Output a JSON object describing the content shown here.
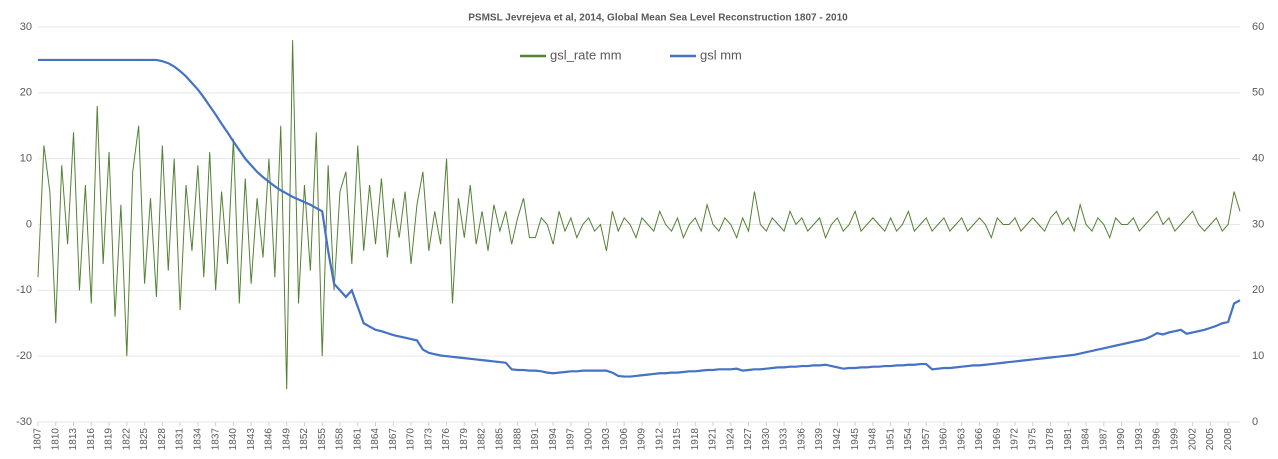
{
  "chart_data": {
    "type": "line",
    "title": "PSMSL Jevrejeva et al, 2014, Global Mean Sea Level Reconstruction 1807 - 2010",
    "x": [
      1807,
      1808,
      1809,
      1810,
      1811,
      1812,
      1813,
      1814,
      1815,
      1816,
      1817,
      1818,
      1819,
      1820,
      1821,
      1822,
      1823,
      1824,
      1825,
      1826,
      1827,
      1828,
      1829,
      1830,
      1831,
      1832,
      1833,
      1834,
      1835,
      1836,
      1837,
      1838,
      1839,
      1840,
      1841,
      1842,
      1843,
      1844,
      1845,
      1846,
      1847,
      1848,
      1849,
      1850,
      1851,
      1852,
      1853,
      1854,
      1855,
      1856,
      1857,
      1858,
      1859,
      1860,
      1861,
      1862,
      1863,
      1864,
      1865,
      1866,
      1867,
      1868,
      1869,
      1870,
      1871,
      1872,
      1873,
      1874,
      1875,
      1876,
      1877,
      1878,
      1879,
      1880,
      1881,
      1882,
      1883,
      1884,
      1885,
      1886,
      1887,
      1888,
      1889,
      1890,
      1891,
      1892,
      1893,
      1894,
      1895,
      1896,
      1897,
      1898,
      1899,
      1900,
      1901,
      1902,
      1903,
      1904,
      1905,
      1906,
      1907,
      1908,
      1909,
      1910,
      1911,
      1912,
      1913,
      1914,
      1915,
      1916,
      1917,
      1918,
      1919,
      1920,
      1921,
      1922,
      1923,
      1924,
      1925,
      1926,
      1927,
      1928,
      1929,
      1930,
      1931,
      1932,
      1933,
      1934,
      1935,
      1936,
      1937,
      1938,
      1939,
      1940,
      1941,
      1942,
      1943,
      1944,
      1945,
      1946,
      1947,
      1948,
      1949,
      1950,
      1951,
      1952,
      1953,
      1954,
      1955,
      1956,
      1957,
      1958,
      1959,
      1960,
      1961,
      1962,
      1963,
      1964,
      1965,
      1966,
      1967,
      1968,
      1969,
      1970,
      1971,
      1972,
      1973,
      1974,
      1975,
      1976,
      1977,
      1978,
      1979,
      1980,
      1981,
      1982,
      1983,
      1984,
      1985,
      1986,
      1987,
      1988,
      1989,
      1990,
      1991,
      1992,
      1993,
      1994,
      1995,
      1996,
      1997,
      1998,
      1999,
      2000,
      2001,
      2002,
      2003,
      2004,
      2005,
      2006,
      2007,
      2008,
      2009,
      2010
    ],
    "series": [
      {
        "name": "gsl_rate mm",
        "color": "#548235",
        "axis": "y",
        "values": [
          -8,
          12,
          5,
          -15,
          9,
          -3,
          14,
          -10,
          6,
          -12,
          18,
          -6,
          11,
          -14,
          3,
          -20,
          8,
          15,
          -9,
          4,
          -11,
          12,
          -7,
          10,
          -13,
          6,
          -4,
          9,
          -8,
          11,
          -10,
          5,
          -6,
          13,
          -12,
          7,
          -9,
          4,
          -5,
          10,
          -8,
          15,
          -25,
          28,
          -12,
          6,
          -7,
          14,
          -20,
          9,
          -10,
          5,
          8,
          -6,
          12,
          -4,
          6,
          -3,
          7,
          -5,
          4,
          -2,
          5,
          -6,
          3,
          8,
          -4,
          2,
          -3,
          10,
          -12,
          4,
          -2,
          6,
          -3,
          2,
          -4,
          3,
          -1,
          2,
          -3,
          1,
          4,
          -2,
          -2,
          1,
          0,
          -3,
          2,
          -1,
          1,
          -2,
          0,
          1,
          -1,
          0,
          -4,
          2,
          -1,
          1,
          0,
          -2,
          1,
          0,
          -1,
          2,
          0,
          -1,
          1,
          -2,
          0,
          1,
          -1,
          3,
          0,
          -1,
          1,
          0,
          -2,
          1,
          -1,
          5,
          0,
          -1,
          1,
          0,
          -1,
          2,
          0,
          1,
          -1,
          0,
          1,
          -2,
          0,
          1,
          -1,
          0,
          2,
          -1,
          0,
          1,
          0,
          -1,
          1,
          -1,
          0,
          2,
          -1,
          0,
          1,
          -1,
          0,
          1,
          -1,
          0,
          1,
          -1,
          0,
          1,
          0,
          -2,
          1,
          0,
          0,
          1,
          -1,
          0,
          1,
          0,
          -1,
          1,
          2,
          0,
          1,
          -1,
          3,
          0,
          -1,
          1,
          0,
          -2,
          1,
          0,
          0,
          1,
          -1,
          0,
          1,
          2,
          0,
          1,
          -1,
          0,
          1,
          2,
          0,
          -1,
          0,
          1,
          -1,
          0,
          5,
          2
        ]
      },
      {
        "name": "gsl mm",
        "color": "#4472c4",
        "axis": "y2",
        "values": [
          55,
          55,
          55,
          55,
          55,
          55,
          55,
          55,
          55,
          55,
          55,
          55,
          55,
          55,
          55,
          55,
          55,
          55,
          55,
          55,
          55,
          54.8,
          54.5,
          54,
          53.3,
          52.5,
          51.5,
          50.5,
          49.3,
          48,
          46.7,
          45.3,
          44,
          42.6,
          41.3,
          40,
          39,
          38,
          37.2,
          36.5,
          35.8,
          35.2,
          34.7,
          34.2,
          33.8,
          33.4,
          33,
          32.5,
          32,
          26,
          21,
          20,
          19,
          20,
          17.5,
          15,
          14.5,
          14,
          13.8,
          13.5,
          13.2,
          13,
          12.8,
          12.6,
          12.4,
          11,
          10.5,
          10.3,
          10.1,
          10,
          9.9,
          9.8,
          9.7,
          9.6,
          9.5,
          9.4,
          9.3,
          9.2,
          9.1,
          9,
          8,
          7.9,
          7.9,
          7.8,
          7.8,
          7.7,
          7.5,
          7.4,
          7.5,
          7.6,
          7.7,
          7.7,
          7.8,
          7.8,
          7.8,
          7.8,
          7.8,
          7.5,
          7,
          6.9,
          6.9,
          7,
          7.1,
          7.2,
          7.3,
          7.4,
          7.4,
          7.5,
          7.5,
          7.6,
          7.7,
          7.7,
          7.8,
          7.9,
          7.9,
          8,
          8,
          8,
          8.1,
          7.8,
          7.9,
          8,
          8,
          8.1,
          8.2,
          8.3,
          8.3,
          8.4,
          8.4,
          8.5,
          8.5,
          8.6,
          8.6,
          8.7,
          8.5,
          8.3,
          8.1,
          8.2,
          8.2,
          8.3,
          8.3,
          8.4,
          8.4,
          8.5,
          8.5,
          8.6,
          8.6,
          8.7,
          8.7,
          8.8,
          8.8,
          8,
          8.1,
          8.2,
          8.2,
          8.3,
          8.4,
          8.5,
          8.6,
          8.6,
          8.7,
          8.8,
          8.9,
          9,
          9.1,
          9.2,
          9.3,
          9.4,
          9.5,
          9.6,
          9.7,
          9.8,
          9.9,
          10,
          10.1,
          10.2,
          10.4,
          10.6,
          10.8,
          11,
          11.2,
          11.4,
          11.6,
          11.8,
          12,
          12.2,
          12.4,
          12.6,
          13,
          13.5,
          13.3,
          13.6,
          13.8,
          14,
          13.4,
          13.6,
          13.8,
          14,
          14.3,
          14.6,
          15,
          15.2,
          18,
          18.5
        ]
      }
    ],
    "xlim": [
      1807,
      2010
    ],
    "xticks": [
      1807,
      1810,
      1813,
      1816,
      1819,
      1822,
      1825,
      1828,
      1831,
      1834,
      1837,
      1840,
      1843,
      1846,
      1849,
      1852,
      1855,
      1858,
      1861,
      1864,
      1867,
      1870,
      1873,
      1876,
      1879,
      1882,
      1885,
      1888,
      1891,
      1894,
      1897,
      1900,
      1903,
      1906,
      1909,
      1912,
      1915,
      1918,
      1921,
      1924,
      1927,
      1930,
      1933,
      1936,
      1939,
      1942,
      1945,
      1948,
      1951,
      1954,
      1957,
      1960,
      1963,
      1966,
      1969,
      1972,
      1975,
      1978,
      1981,
      1984,
      1987,
      1990,
      1993,
      1996,
      1999,
      2002,
      2005,
      2008
    ],
    "ylim": [
      -30,
      30
    ],
    "yticks": [
      -30,
      -20,
      -10,
      0,
      10,
      20,
      30
    ],
    "y2lim": [
      0,
      60
    ],
    "y2ticks": [
      0,
      10,
      20,
      30,
      40,
      50,
      60
    ],
    "grid": true,
    "legend": "top"
  }
}
